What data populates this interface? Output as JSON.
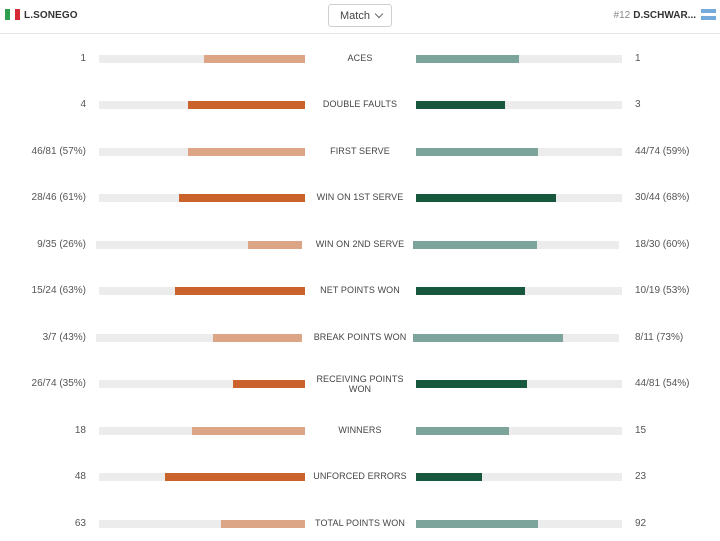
{
  "header": {
    "left_player": "L.SONEGO",
    "right_seed": "#12",
    "right_player": "D.SCHWAR...",
    "dropdown_label": "Match"
  },
  "colors": {
    "left_strong": "#c9622b",
    "left_light": "#dca586",
    "right_strong": "#17573d",
    "right_light": "#7da49a",
    "track": "#ececec"
  },
  "stats": [
    {
      "label": "ACES",
      "left": "1",
      "right": "1",
      "left_pct": 49,
      "right_pct": 50,
      "emphasis": "light"
    },
    {
      "label": "DOUBLE FAULTS",
      "left": "4",
      "right": "3",
      "left_pct": 57,
      "right_pct": 43,
      "emphasis": "strong"
    },
    {
      "label": "FIRST SERVE",
      "left": "46/81 (57%)",
      "right": "44/74 (59%)",
      "left_pct": 57,
      "right_pct": 59,
      "emphasis": "light"
    },
    {
      "label": "WIN ON 1ST SERVE",
      "left": "28/46 (61%)",
      "right": "30/44 (68%)",
      "left_pct": 61,
      "right_pct": 68,
      "emphasis": "strong"
    },
    {
      "label": "WIN ON 2ND SERVE",
      "left": "9/35 (26%)",
      "right": "18/30 (60%)",
      "left_pct": 26,
      "right_pct": 60,
      "emphasis": "light"
    },
    {
      "label": "NET POINTS WON",
      "left": "15/24 (63%)",
      "right": "10/19 (53%)",
      "left_pct": 63,
      "right_pct": 53,
      "emphasis": "strong"
    },
    {
      "label": "BREAK POINTS WON",
      "left": "3/7 (43%)",
      "right": "8/11 (73%)",
      "left_pct": 43,
      "right_pct": 73,
      "emphasis": "light"
    },
    {
      "label": "RECEIVING POINTS WON",
      "left": "26/74 (35%)",
      "right": "44/81 (54%)",
      "left_pct": 35,
      "right_pct": 54,
      "emphasis": "strong"
    },
    {
      "label": "WINNERS",
      "left": "18",
      "right": "15",
      "left_pct": 55,
      "right_pct": 45,
      "emphasis": "light"
    },
    {
      "label": "UNFORCED ERRORS",
      "left": "48",
      "right": "23",
      "left_pct": 68,
      "right_pct": 32,
      "emphasis": "strong"
    },
    {
      "label": "TOTAL POINTS WON",
      "left": "63",
      "right": "92",
      "left_pct": 41,
      "right_pct": 59,
      "emphasis": "light"
    }
  ]
}
